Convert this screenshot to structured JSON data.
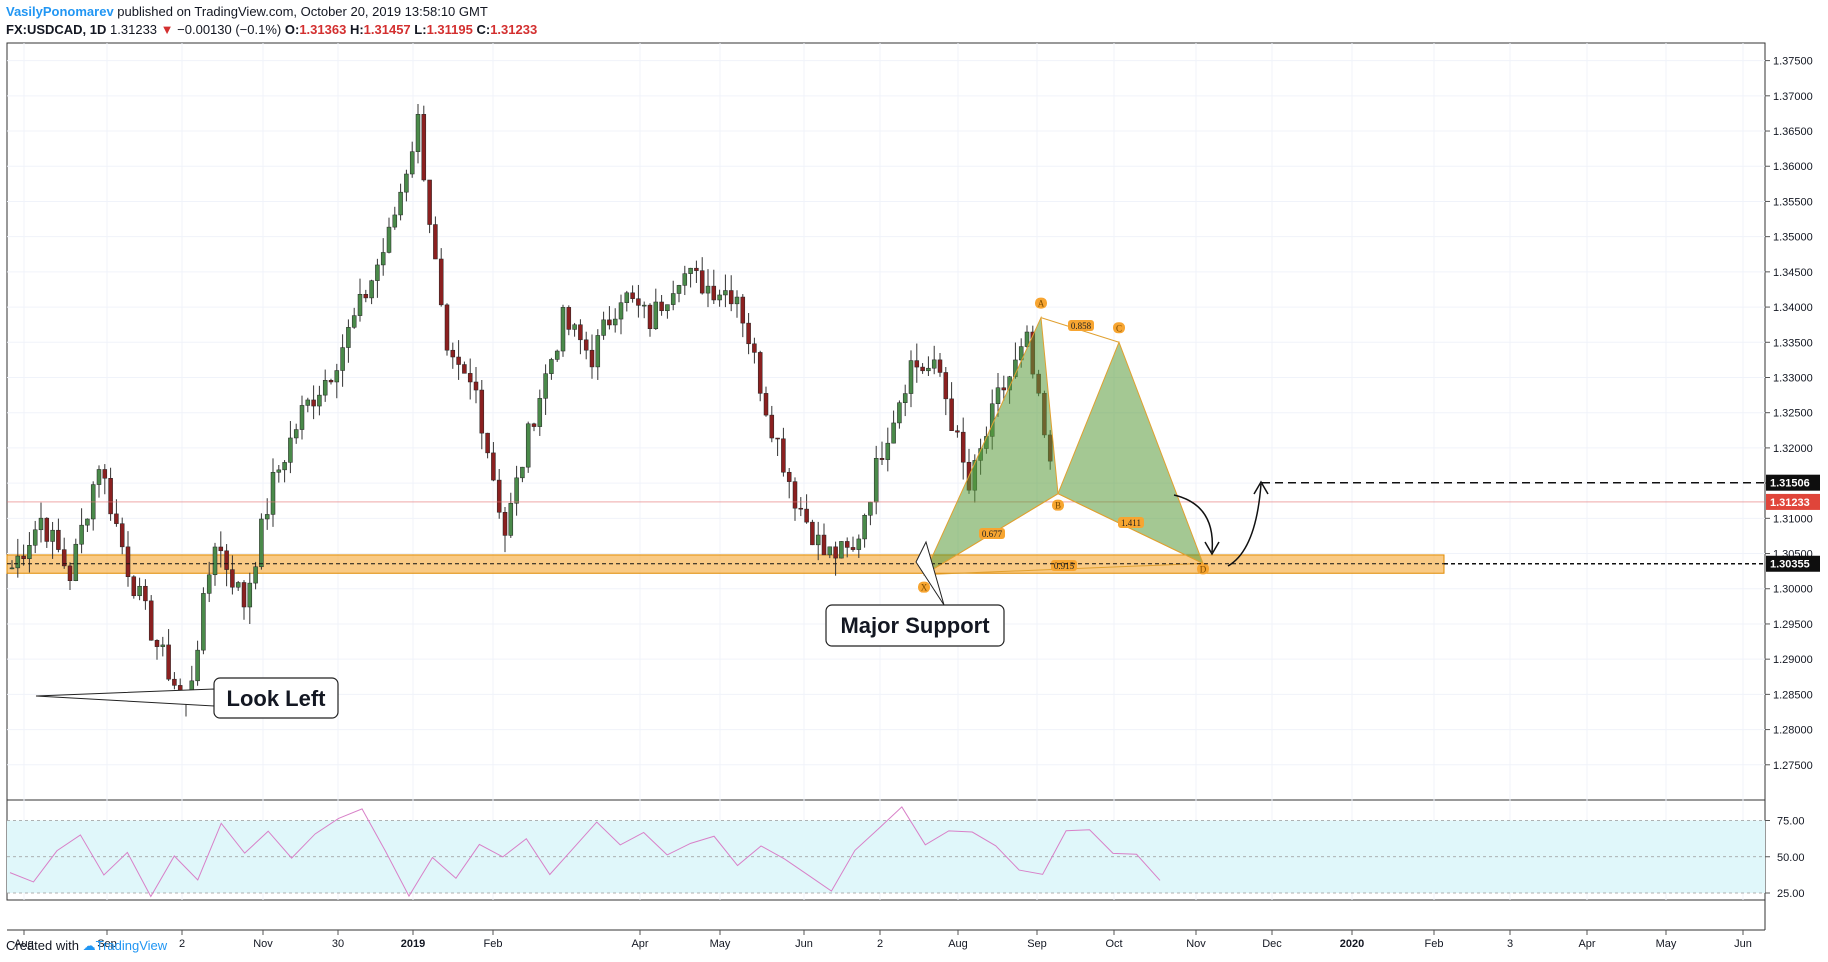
{
  "header": {
    "author": "VasilyPonomarev",
    "published": "published on TradingView.com, October 20, 2019 13:58:10 GMT",
    "symbol": "FX:USDCAD, 1D",
    "last": "1.31233",
    "change_arrow": "▼",
    "change": "−0.00130 (−0.1%)",
    "o_label": "O:",
    "o_value": "1.31363",
    "h_label": "H:",
    "h_value": "1.31457",
    "l_label": "L:",
    "l_value": "1.31195",
    "c_label": "C:",
    "c_value": "1.31233"
  },
  "footer": {
    "created_with": "Created with",
    "brand": "TradingView"
  },
  "chart_data": {
    "type": "candlestick",
    "symbol": "FX:USDCAD",
    "interval": "1D",
    "ylim": [
      1.27,
      1.3775
    ],
    "price_axis_ticks": [
      "1.37500",
      "1.37000",
      "1.36500",
      "1.36000",
      "1.35500",
      "1.35000",
      "1.34500",
      "1.34000",
      "1.33500",
      "1.33000",
      "1.32500",
      "1.32000",
      "1.31500",
      "1.31000",
      "1.30500",
      "1.30000",
      "1.29500",
      "1.29000",
      "1.28500",
      "1.28000",
      "1.27500"
    ],
    "time_axis_ticks": [
      {
        "label": "Aug",
        "bold": false
      },
      {
        "label": "Sep",
        "bold": false
      },
      {
        "label": "2",
        "bold": false
      },
      {
        "label": "Nov",
        "bold": false
      },
      {
        "label": "30",
        "bold": false
      },
      {
        "label": "2019",
        "bold": true
      },
      {
        "label": "Feb",
        "bold": false
      },
      {
        "label": "Apr",
        "bold": false
      },
      {
        "label": "May",
        "bold": false
      },
      {
        "label": "Jun",
        "bold": false
      },
      {
        "label": "2",
        "bold": false
      },
      {
        "label": "Aug",
        "bold": false
      },
      {
        "label": "Sep",
        "bold": false
      },
      {
        "label": "Oct",
        "bold": false
      },
      {
        "label": "Nov",
        "bold": false
      },
      {
        "label": "Dec",
        "bold": false
      },
      {
        "label": "2020",
        "bold": true
      },
      {
        "label": "Feb",
        "bold": false
      },
      {
        "label": "3",
        "bold": false
      },
      {
        "label": "Apr",
        "bold": false
      },
      {
        "label": "May",
        "bold": false
      },
      {
        "label": "Jun",
        "bold": false
      }
    ],
    "approx_close_path": [
      {
        "x": "Aug 2018",
        "y": 1.303
      },
      {
        "x": "mid Aug",
        "y": 1.31
      },
      {
        "x": "late Aug",
        "y": 1.302
      },
      {
        "x": "Sep",
        "y": 1.318
      },
      {
        "x": "mid Sep",
        "y": 1.303
      },
      {
        "x": "late Sep",
        "y": 1.292
      },
      {
        "x": "Oct 2",
        "y": 1.283
      },
      {
        "x": "mid Oct",
        "y": 1.307
      },
      {
        "x": "late Oct",
        "y": 1.298
      },
      {
        "x": "Nov",
        "y": 1.315
      },
      {
        "x": "mid Nov",
        "y": 1.325
      },
      {
        "x": "late Nov",
        "y": 1.331
      },
      {
        "x": "Dec",
        "y": 1.34
      },
      {
        "x": "mid Dec",
        "y": 1.35
      },
      {
        "x": "Dec 30",
        "y": 1.3664
      },
      {
        "x": "early Jan",
        "y": 1.332
      },
      {
        "x": "mid Jan",
        "y": 1.328
      },
      {
        "x": "Feb",
        "y": 1.308
      },
      {
        "x": "mid Feb",
        "y": 1.325
      },
      {
        "x": "Mar",
        "y": 1.338
      },
      {
        "x": "mid Mar",
        "y": 1.333
      },
      {
        "x": "Apr",
        "y": 1.342
      },
      {
        "x": "mid Apr",
        "y": 1.338
      },
      {
        "x": "May",
        "y": 1.345
      },
      {
        "x": "mid May",
        "y": 1.343
      },
      {
        "x": "Jun",
        "y": 1.342
      },
      {
        "x": "mid Jun",
        "y": 1.326
      },
      {
        "x": "late Jun",
        "y": 1.313
      },
      {
        "x": "Jul 2",
        "y": 1.305
      },
      {
        "x": "mid Jul",
        "y": 1.305
      },
      {
        "x": "Aug",
        "y": 1.32
      },
      {
        "x": "mid Aug",
        "y": 1.332
      },
      {
        "x": "Sep",
        "y": 1.3306
      },
      {
        "x": "mid Sep",
        "y": 1.314
      },
      {
        "x": "late Sep",
        "y": 1.327
      },
      {
        "x": "Oct",
        "y": 1.3348
      },
      {
        "x": "mid Oct",
        "y": 1.3123
      }
    ],
    "harmonic_pattern": {
      "points": [
        {
          "label": "X",
          "price": 1.302
        },
        {
          "label": "A",
          "price": 1.3385
        },
        {
          "label": "B",
          "price": 1.3135
        },
        {
          "label": "C",
          "price": 1.335
        },
        {
          "label": "D",
          "price": 1.3036
        }
      ],
      "ratios": [
        "0.677",
        "0.858",
        "1.411",
        "0.915"
      ]
    },
    "support_zone": {
      "from": 1.3022,
      "to": 1.3048
    },
    "price_tags": [
      {
        "value": "1.31506",
        "style": "black"
      },
      {
        "value": "1.31233",
        "style": "red"
      },
      {
        "value": "1.30355",
        "style": "black"
      }
    ],
    "annotations": [
      "Major Support",
      "Look Left"
    ],
    "rsi": {
      "levels": [
        "75.00",
        "50.00",
        "25.00"
      ],
      "band": [
        30,
        80
      ],
      "approx_values": [
        45,
        40,
        58,
        72,
        45,
        60,
        30,
        55,
        40,
        78,
        60,
        72,
        52,
        68,
        82,
        88,
        58,
        30,
        52,
        40,
        65,
        55,
        70,
        45,
        60,
        78,
        65,
        70,
        55,
        62,
        70,
        48,
        62,
        52,
        40,
        30,
        60,
        72,
        88,
        62,
        70,
        75,
        65,
        45,
        40,
        70,
        75,
        60,
        55,
        40
      ]
    }
  }
}
